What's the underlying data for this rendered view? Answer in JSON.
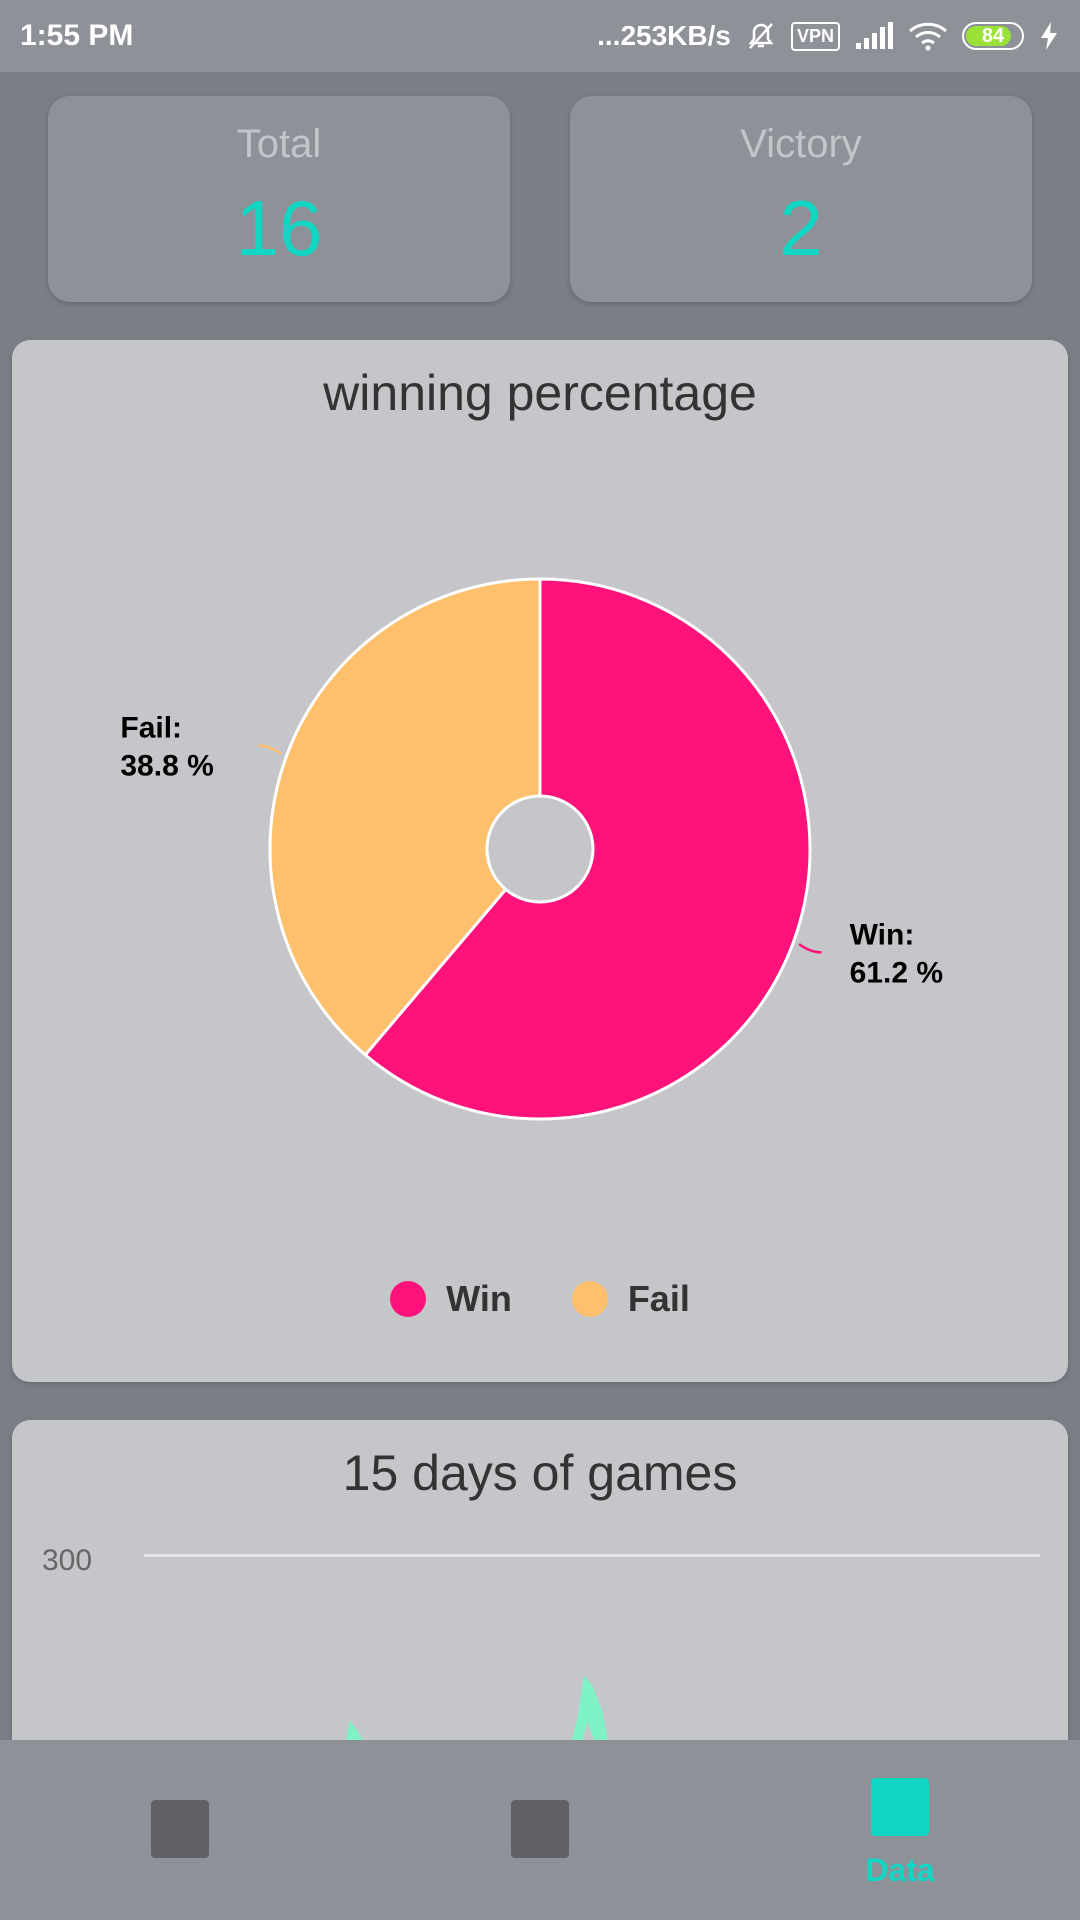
{
  "status_bar": {
    "time": "1:55 PM",
    "network_speed": "...253KB/s",
    "vpn_label": "VPN",
    "battery_level": "84",
    "battery_percent": 84
  },
  "stats": {
    "total": {
      "label": "Total",
      "value": "16"
    },
    "victory": {
      "label": "Victory",
      "value": "2"
    }
  },
  "pie_chart": {
    "title": "winning percentage",
    "chart_data": {
      "type": "pie",
      "slices": [
        {
          "name": "Win",
          "value": 61.2,
          "label_name": "Win:",
          "label_value": "61.2 %",
          "color": "#ff137b"
        },
        {
          "name": "Fail",
          "value": 38.8,
          "label_name": "Fail:",
          "label_value": "38.8 %",
          "color": "#ffc06d"
        }
      ],
      "donut": true,
      "legend_position": "bottom",
      "legend": [
        {
          "name": "Win",
          "color": "#ff137b"
        },
        {
          "name": "Fail",
          "color": "#ffc06d"
        }
      ]
    }
  },
  "line_chart": {
    "title": "15 days of games",
    "chart_data": {
      "type": "area",
      "y_tick_labels": [
        "300"
      ],
      "color": "#7ff2c6"
    }
  },
  "bottom_nav": {
    "items": [
      {
        "label": "",
        "active": false
      },
      {
        "label": "",
        "active": false
      },
      {
        "label": "Data",
        "active": true
      }
    ],
    "accent_color": "#12d6c4"
  }
}
